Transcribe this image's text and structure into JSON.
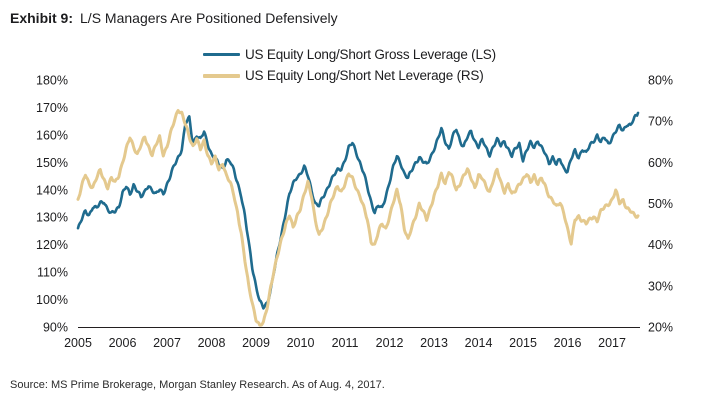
{
  "title": {
    "prefix": "Exhibit 9:",
    "text": "L/S Managers Are Positioned Defensively"
  },
  "source": "Source: MS Prime Brokerage, Morgan Stanley Research. As of Aug. 4, 2017.",
  "colors": {
    "gross": "#1f6b8e",
    "net": "#e4c98e",
    "text": "#1d1d1f",
    "axis_line": "#231f20"
  },
  "legend": [
    {
      "label": "US Equity Long/Short Gross Leverage (LS)"
    },
    {
      "label": "US Equity Long/Short Net Leverage (RS)"
    }
  ],
  "chart_data": {
    "type": "line",
    "title": "Exhibit 9: L/S Managers Are Positioned Defensively",
    "grid": false,
    "legend_position": "top-center",
    "x_ticks": [
      "2005",
      "2006",
      "2007",
      "2008",
      "2009",
      "2010",
      "2011",
      "2012",
      "2013",
      "2014",
      "2015",
      "2016",
      "2017"
    ],
    "x_start_year": 2005.0,
    "x_step_years": 0.08333,
    "left_axis": {
      "min": 90,
      "max": 180,
      "ticks": [
        "180%",
        "170%",
        "160%",
        "150%",
        "140%",
        "130%",
        "120%",
        "110%",
        "100%",
        "90%"
      ]
    },
    "right_axis": {
      "min": 20,
      "max": 80,
      "ticks": [
        "80%",
        "70%",
        "60%",
        "50%",
        "40%",
        "30%",
        "20%"
      ]
    },
    "series": [
      {
        "name": "US Equity Long/Short Gross Leverage (LS)",
        "axis": "left",
        "color": "#1f6b8e",
        "values": [
          126,
          129,
          132,
          131,
          134,
          133,
          135,
          136,
          133,
          131,
          132,
          134,
          139,
          141,
          138,
          142,
          140,
          137,
          139,
          142,
          140,
          138,
          140,
          139,
          142,
          145,
          149,
          152,
          155,
          164,
          166,
          157,
          160,
          158,
          161,
          157,
          153,
          151,
          149,
          148,
          151,
          150,
          147,
          143,
          138,
          130,
          121,
          112,
          105,
          99,
          97,
          99,
          104,
          111,
          118,
          125,
          132,
          138,
          142,
          145,
          146,
          148,
          145,
          140,
          135,
          134,
          137,
          140,
          143,
          145,
          147,
          148,
          151,
          155,
          157,
          154,
          150,
          146,
          141,
          136,
          132,
          134,
          133,
          138,
          143,
          148,
          152,
          150,
          146,
          144,
          147,
          150,
          152,
          150,
          149,
          152,
          155,
          158,
          162,
          158,
          155,
          159,
          162,
          158,
          156,
          159,
          161,
          158,
          156,
          158,
          155,
          153,
          156,
          158,
          156,
          158,
          155,
          152,
          155,
          157,
          151,
          154,
          157,
          156,
          158,
          155,
          153,
          150,
          152,
          149,
          151,
          148,
          147,
          151,
          154,
          152,
          155,
          153,
          156,
          158,
          160,
          157,
          159,
          157,
          159,
          161,
          163,
          162,
          164,
          163,
          166,
          168
        ]
      },
      {
        "name": "US Equity Long/Short Net Leverage (RS)",
        "axis": "right",
        "color": "#e4c98e",
        "values": [
          51,
          54,
          57,
          55,
          54,
          56,
          58,
          56,
          54,
          56,
          55,
          57,
          60,
          63,
          66,
          64,
          62,
          64,
          66,
          64,
          62,
          64,
          66,
          62,
          64,
          67,
          70,
          73,
          72,
          69,
          66,
          64,
          66,
          63,
          65,
          62,
          60,
          61,
          58,
          60,
          57,
          55,
          52,
          48,
          43,
          36,
          30,
          26,
          22,
          20,
          21,
          25,
          30,
          34,
          38,
          42,
          45,
          47,
          44,
          47,
          49,
          52,
          55,
          52,
          46,
          42,
          44,
          47,
          50,
          52,
          54,
          53,
          55,
          57,
          56,
          54,
          52,
          49,
          46,
          41,
          40,
          43,
          45,
          44,
          47,
          50,
          53,
          50,
          44,
          41,
          44,
          47,
          50,
          48,
          46,
          49,
          52,
          54,
          57,
          55,
          58,
          56,
          53,
          55,
          57,
          58,
          56,
          54,
          57,
          56,
          54,
          53,
          56,
          58,
          55,
          53,
          55,
          52,
          53,
          55,
          56,
          57,
          55,
          57,
          55,
          56,
          54,
          52,
          51,
          49,
          50,
          48,
          44,
          40,
          46,
          47,
          46,
          45,
          46,
          47,
          46,
          48,
          49,
          50,
          51,
          53,
          50,
          51,
          49,
          48,
          47,
          47
        ]
      }
    ]
  }
}
